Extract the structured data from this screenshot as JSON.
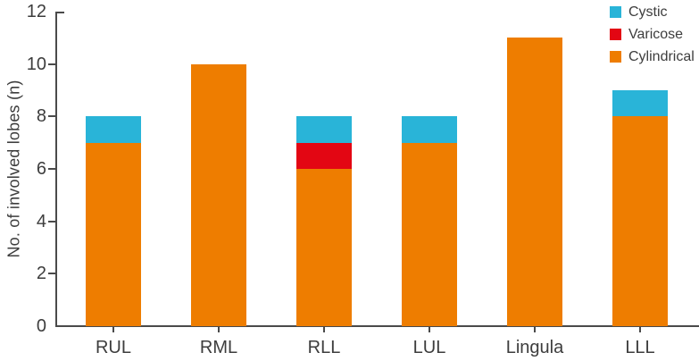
{
  "chart_data": {
    "type": "bar",
    "stacked": true,
    "title": "",
    "xlabel": "",
    "ylabel": "No. of involved lobes (n)",
    "categories": [
      "RUL",
      "RML",
      "RLL",
      "LUL",
      "Lingula",
      "LLL"
    ],
    "series": [
      {
        "name": "Cylindrical",
        "color": "#EE7D00",
        "values": [
          7,
          10,
          6,
          7,
          11,
          8
        ]
      },
      {
        "name": "Varicose",
        "color": "#E30613",
        "values": [
          0,
          0,
          1,
          0,
          0,
          0
        ]
      },
      {
        "name": "Cystic",
        "color": "#29B4D8",
        "values": [
          1,
          0,
          1,
          1,
          0,
          1
        ]
      }
    ],
    "totals": [
      8,
      10,
      8,
      8,
      11,
      9
    ],
    "yticks": [
      0,
      2,
      4,
      6,
      8,
      10,
      12
    ],
    "ylim": [
      0,
      12
    ],
    "grid": false,
    "legend": {
      "position": "top-right",
      "entries": [
        "Cystic",
        "Varicose",
        "Cylindrical"
      ]
    },
    "colors": {
      "axis": "#4a4a4a",
      "text": "#3d3d3d",
      "background": "#ffffff"
    }
  }
}
